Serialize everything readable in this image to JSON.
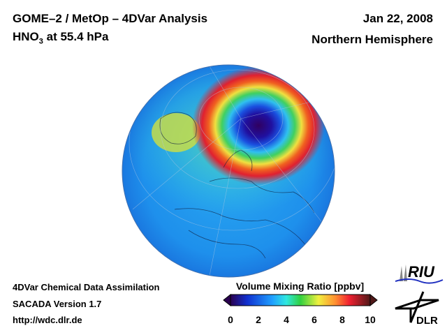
{
  "header": {
    "title_line1": "GOME–2 / MetOp – 4DVar Analysis",
    "species_prefix": "HNO",
    "species_subscript": "3",
    "level": " at 55.4 hPa",
    "date": "Jan 22, 2008",
    "region": "Northern Hemisphere"
  },
  "footer": {
    "line1": "4DVar Chemical Data Assimilation",
    "line2": "SACADA Version 1.7",
    "url": "http://wdc.dlr.de"
  },
  "colorbar": {
    "label": "Volume Mixing Ratio [ppbv]",
    "ticks": [
      "0",
      "2",
      "4",
      "6",
      "8",
      "10"
    ],
    "range": [
      0,
      10
    ],
    "colors": [
      "#2a0050",
      "#1030d0",
      "#20a0ff",
      "#30e8e0",
      "#30d040",
      "#f0f040",
      "#ff9030",
      "#f02030",
      "#501818"
    ]
  },
  "logos": {
    "riu": "RIU",
    "dlr": "DLR"
  }
}
